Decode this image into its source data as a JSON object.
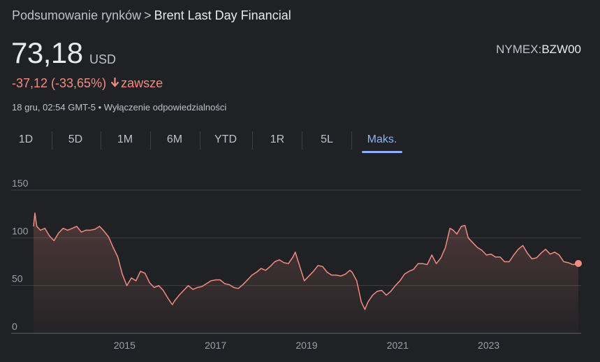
{
  "breadcrumb": {
    "root": "Podsumowanie rynków",
    "separator": ">",
    "current": "Brent Last Day Financial"
  },
  "quote": {
    "price": "73,18",
    "currency": "USD",
    "change": "-37,12 (-33,65%)",
    "change_arrow_icon": "arrow-down-icon",
    "period_label": "zawsze",
    "timestamp": "18 gru, 02:54 GMT-5",
    "bullet": "•",
    "disclaimer": "Wyłączenie odpowiedzialności",
    "exchange": "NYMEX:",
    "symbol": "BZW00",
    "negative_color": "#f28b82"
  },
  "tabs": [
    {
      "label": "1D",
      "active": false
    },
    {
      "label": "5D",
      "active": false
    },
    {
      "label": "1M",
      "active": false
    },
    {
      "label": "6M",
      "active": false
    },
    {
      "label": "YTD",
      "active": false
    },
    {
      "label": "1R",
      "active": false
    },
    {
      "label": "5L",
      "active": false
    },
    {
      "label": "Maks.",
      "active": true
    }
  ],
  "colors": {
    "line": "#f28b82",
    "accent": "#8ab4f8",
    "background": "#202124",
    "grid": "#3c4043"
  },
  "chart_data": {
    "type": "area",
    "title": "",
    "xlabel": "",
    "ylabel": "",
    "ylim": [
      0,
      150
    ],
    "xlim": [
      2013.0,
      2024.97
    ],
    "yticks": [
      "150",
      "100",
      "50",
      "0"
    ],
    "ytick_values": [
      150,
      100,
      50,
      0
    ],
    "xticks": [
      "2015",
      "2017",
      "2019",
      "2021",
      "2023"
    ],
    "xtick_values": [
      2015,
      2017,
      2019,
      2021,
      2023
    ],
    "grid": true,
    "series": [
      {
        "values": [
          [
            2013.0,
            112
          ],
          [
            2013.03,
            126
          ],
          [
            2013.07,
            112
          ],
          [
            2013.15,
            108
          ],
          [
            2013.25,
            110
          ],
          [
            2013.35,
            102
          ],
          [
            2013.45,
            97
          ],
          [
            2013.55,
            105
          ],
          [
            2013.65,
            110
          ],
          [
            2013.75,
            108
          ],
          [
            2013.85,
            110
          ],
          [
            2013.95,
            112
          ],
          [
            2014.05,
            106
          ],
          [
            2014.15,
            108
          ],
          [
            2014.25,
            108
          ],
          [
            2014.35,
            109
          ],
          [
            2014.45,
            112
          ],
          [
            2014.55,
            107
          ],
          [
            2014.65,
            101
          ],
          [
            2014.75,
            90
          ],
          [
            2014.85,
            80
          ],
          [
            2014.95,
            62
          ],
          [
            2015.05,
            50
          ],
          [
            2015.15,
            58
          ],
          [
            2015.25,
            55
          ],
          [
            2015.35,
            65
          ],
          [
            2015.45,
            63
          ],
          [
            2015.55,
            53
          ],
          [
            2015.65,
            48
          ],
          [
            2015.75,
            50
          ],
          [
            2015.85,
            45
          ],
          [
            2015.95,
            37
          ],
          [
            2016.05,
            30
          ],
          [
            2016.1,
            34
          ],
          [
            2016.2,
            40
          ],
          [
            2016.3,
            45
          ],
          [
            2016.4,
            50
          ],
          [
            2016.5,
            46
          ],
          [
            2016.6,
            48
          ],
          [
            2016.7,
            49
          ],
          [
            2016.8,
            52
          ],
          [
            2016.9,
            55
          ],
          [
            2017.0,
            56
          ],
          [
            2017.1,
            56
          ],
          [
            2017.2,
            52
          ],
          [
            2017.3,
            51
          ],
          [
            2017.4,
            48
          ],
          [
            2017.5,
            47
          ],
          [
            2017.6,
            51
          ],
          [
            2017.7,
            56
          ],
          [
            2017.8,
            61
          ],
          [
            2017.9,
            64
          ],
          [
            2018.0,
            68
          ],
          [
            2018.1,
            66
          ],
          [
            2018.2,
            70
          ],
          [
            2018.3,
            75
          ],
          [
            2018.4,
            77
          ],
          [
            2018.5,
            74
          ],
          [
            2018.6,
            73
          ],
          [
            2018.7,
            80
          ],
          [
            2018.75,
            85
          ],
          [
            2018.85,
            70
          ],
          [
            2018.95,
            55
          ],
          [
            2019.05,
            60
          ],
          [
            2019.15,
            65
          ],
          [
            2019.25,
            71
          ],
          [
            2019.35,
            70
          ],
          [
            2019.45,
            64
          ],
          [
            2019.55,
            61
          ],
          [
            2019.65,
            61
          ],
          [
            2019.75,
            60
          ],
          [
            2019.85,
            62
          ],
          [
            2019.95,
            66
          ],
          [
            2020.0,
            64
          ],
          [
            2020.1,
            55
          ],
          [
            2020.2,
            33
          ],
          [
            2020.28,
            25
          ],
          [
            2020.35,
            33
          ],
          [
            2020.45,
            40
          ],
          [
            2020.55,
            44
          ],
          [
            2020.65,
            45
          ],
          [
            2020.75,
            40
          ],
          [
            2020.85,
            44
          ],
          [
            2020.95,
            50
          ],
          [
            2021.05,
            55
          ],
          [
            2021.15,
            62
          ],
          [
            2021.25,
            65
          ],
          [
            2021.35,
            67
          ],
          [
            2021.45,
            73
          ],
          [
            2021.55,
            73
          ],
          [
            2021.65,
            72
          ],
          [
            2021.75,
            82
          ],
          [
            2021.85,
            73
          ],
          [
            2021.95,
            79
          ],
          [
            2022.05,
            90
          ],
          [
            2022.15,
            110
          ],
          [
            2022.22,
            108
          ],
          [
            2022.3,
            104
          ],
          [
            2022.4,
            112
          ],
          [
            2022.48,
            113
          ],
          [
            2022.55,
            100
          ],
          [
            2022.65,
            95
          ],
          [
            2022.75,
            90
          ],
          [
            2022.85,
            87
          ],
          [
            2022.95,
            82
          ],
          [
            2023.05,
            83
          ],
          [
            2023.15,
            80
          ],
          [
            2023.25,
            80
          ],
          [
            2023.35,
            75
          ],
          [
            2023.45,
            75
          ],
          [
            2023.55,
            82
          ],
          [
            2023.65,
            88
          ],
          [
            2023.75,
            92
          ],
          [
            2023.85,
            84
          ],
          [
            2023.95,
            78
          ],
          [
            2024.05,
            79
          ],
          [
            2024.15,
            84
          ],
          [
            2024.25,
            88
          ],
          [
            2024.35,
            83
          ],
          [
            2024.45,
            85
          ],
          [
            2024.55,
            82
          ],
          [
            2024.65,
            75
          ],
          [
            2024.75,
            74
          ],
          [
            2024.85,
            72
          ],
          [
            2024.97,
            73.18
          ]
        ]
      }
    ]
  }
}
